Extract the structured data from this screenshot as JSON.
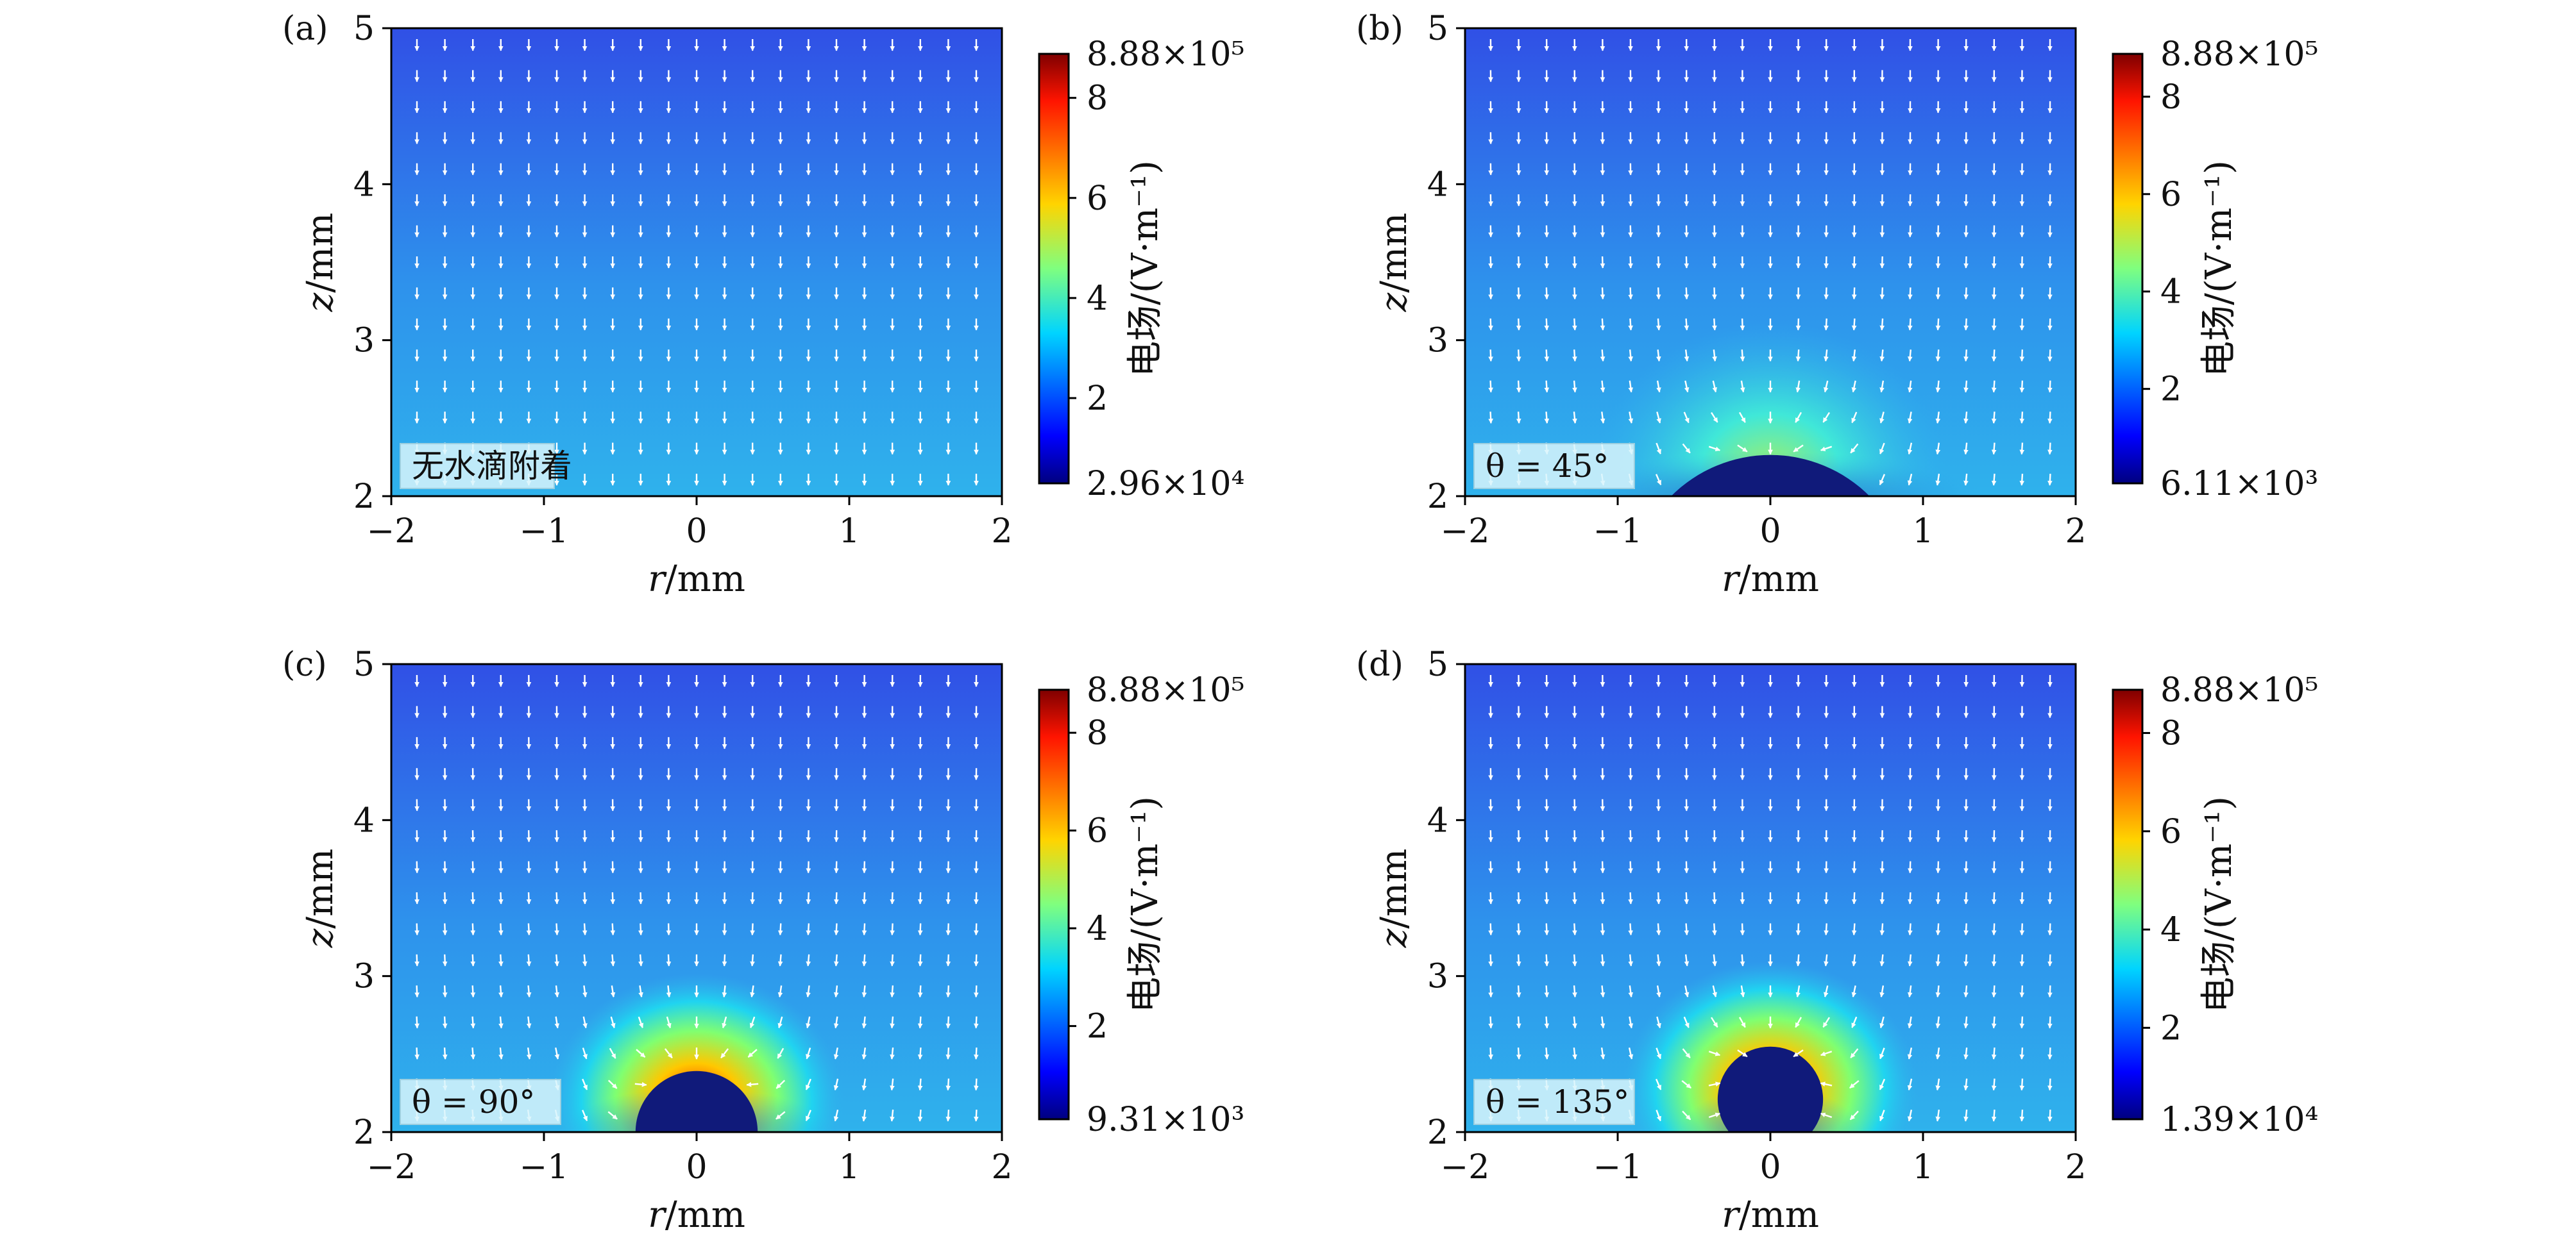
{
  "chart_data": [
    {
      "type": "heatmap",
      "panel_label": "(a)",
      "annotation": "无水滴附着",
      "contact_angle_deg": null,
      "xlabel": "r/mm",
      "ylabel": "z/mm",
      "xlim": [
        -2,
        2
      ],
      "ylim": [
        2,
        5
      ],
      "xticks": [
        "−2",
        "−1",
        "0",
        "1",
        "2"
      ],
      "yticks": [
        "2",
        "3",
        "4",
        "5"
      ],
      "colorbar": {
        "label": "电场/(V·m⁻¹)",
        "max_label": "8.88×10⁵",
        "min_label": "2.96×10⁴",
        "ticks": [
          "2",
          "4",
          "6",
          "8"
        ],
        "min": 29600,
        "max": 888000
      },
      "droplet": null
    },
    {
      "type": "heatmap",
      "panel_label": "(b)",
      "annotation": "θ = 45°",
      "contact_angle_deg": 45,
      "xlabel": "r/mm",
      "ylabel": "z/mm",
      "xlim": [
        -2,
        2
      ],
      "ylim": [
        2,
        5
      ],
      "xticks": [
        "−2",
        "−1",
        "0",
        "1",
        "2"
      ],
      "yticks": [
        "2",
        "3",
        "4",
        "5"
      ],
      "colorbar": {
        "label": "电场/(V·m⁻¹)",
        "max_label": "8.88×10⁵",
        "min_label": "6.11×10³",
        "ticks": [
          "2",
          "4",
          "6",
          "8"
        ],
        "min": 6110,
        "max": 888000
      },
      "droplet": {
        "base_half_width_mm": 0.65,
        "height_mm": 0.27
      }
    },
    {
      "type": "heatmap",
      "panel_label": "(c)",
      "annotation": "θ = 90°",
      "contact_angle_deg": 90,
      "xlabel": "r/mm",
      "ylabel": "z/mm",
      "xlim": [
        -2,
        2
      ],
      "ylim": [
        2,
        5
      ],
      "xticks": [
        "−2",
        "−1",
        "0",
        "1",
        "2"
      ],
      "yticks": [
        "2",
        "3",
        "4",
        "5"
      ],
      "colorbar": {
        "label": "电场/(V·m⁻¹)",
        "max_label": "8.88×10⁵",
        "min_label": "9.31×10³",
        "ticks": [
          "2",
          "4",
          "6",
          "8"
        ],
        "min": 9310,
        "max": 888000
      },
      "droplet": {
        "base_half_width_mm": 0.4,
        "height_mm": 0.4
      }
    },
    {
      "type": "heatmap",
      "panel_label": "(d)",
      "annotation": "θ = 135°",
      "contact_angle_deg": 135,
      "xlabel": "r/mm",
      "ylabel": "z/mm",
      "xlim": [
        -2,
        2
      ],
      "ylim": [
        2,
        5
      ],
      "xticks": [
        "−2",
        "−1",
        "0",
        "1",
        "2"
      ],
      "yticks": [
        "2",
        "3",
        "4",
        "5"
      ],
      "colorbar": {
        "label": "电场/(V·m⁻¹)",
        "max_label": "8.88×10⁵",
        "min_label": "1.39×10⁴",
        "ticks": [
          "2",
          "4",
          "6",
          "8"
        ],
        "min": 13900,
        "max": 888000
      },
      "droplet": {
        "base_half_width_mm": 0.27,
        "height_mm": 0.56
      }
    }
  ]
}
